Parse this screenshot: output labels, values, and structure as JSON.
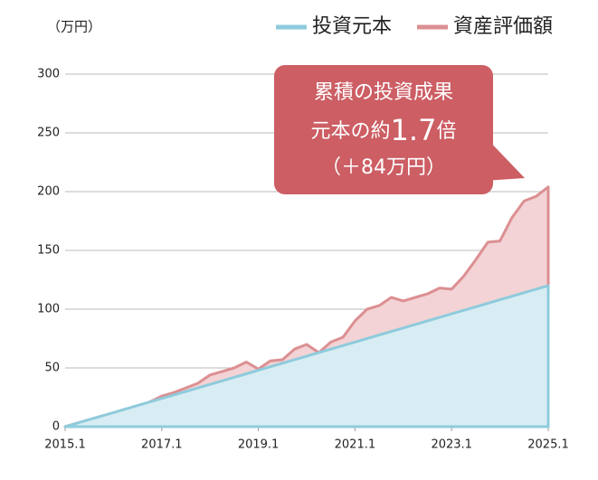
{
  "chart_data": {
    "type": "area",
    "unit_label": "（万円）",
    "x": [
      "2015.1",
      "2015.4",
      "2015.7",
      "2015.10",
      "2016.1",
      "2016.4",
      "2016.7",
      "2016.10",
      "2017.1",
      "2017.4",
      "2017.7",
      "2017.10",
      "2018.1",
      "2018.4",
      "2018.7",
      "2018.10",
      "2019.1",
      "2019.4",
      "2019.7",
      "2019.10",
      "2020.1",
      "2020.4",
      "2020.7",
      "2020.10",
      "2021.1",
      "2021.4",
      "2021.7",
      "2021.10",
      "2022.1",
      "2022.4",
      "2022.7",
      "2022.10",
      "2023.1",
      "2023.4",
      "2023.7",
      "2023.10",
      "2024.1",
      "2024.4",
      "2024.7",
      "2024.10",
      "2025.1"
    ],
    "xticks": [
      "2015.1",
      "2017.1",
      "2019.1",
      "2021.1",
      "2023.1",
      "2025.1"
    ],
    "ylim": [
      0,
      300
    ],
    "yticks": [
      0,
      50,
      100,
      150,
      200,
      250,
      300
    ],
    "grid": true,
    "legend": "top-right",
    "series": [
      {
        "name": "資産評価額",
        "color": "#dc8f92",
        "fill": "#f3d3d5",
        "values": [
          0,
          3,
          6,
          9,
          11,
          14,
          17,
          21,
          26,
          29,
          33,
          37,
          44,
          47,
          50,
          55,
          49,
          56,
          57,
          66,
          70,
          63,
          72,
          76,
          90,
          100,
          103,
          110,
          107,
          110,
          113,
          118,
          117,
          128,
          142,
          157,
          158,
          178,
          192,
          196,
          204
        ]
      },
      {
        "name": "投資元本",
        "color": "#8ecbdc",
        "fill": "#d8edf3",
        "values": [
          0,
          3,
          6,
          9,
          12,
          15,
          18,
          21,
          24,
          27,
          30,
          33,
          36,
          39,
          42,
          45,
          48,
          51,
          54,
          57,
          60,
          63,
          66,
          69,
          72,
          75,
          78,
          81,
          84,
          87,
          90,
          93,
          96,
          99,
          102,
          105,
          108,
          111,
          114,
          117,
          120
        ]
      }
    ],
    "annotation": {
      "line1": "累積の投資成果",
      "line2_pre": "元本の約",
      "line2_num": "1.7",
      "line2_post": "倍",
      "line3": "（＋84万円）"
    }
  }
}
